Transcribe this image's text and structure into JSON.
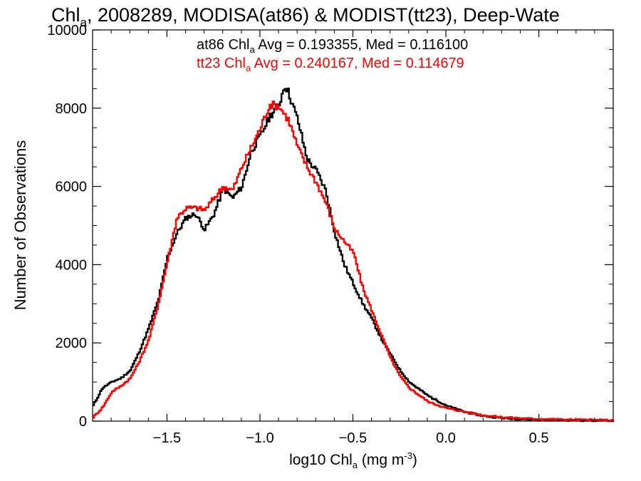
{
  "chart_data": {
    "type": "line",
    "title": "Chl_a, 2008289, MODISA(at86) & MODIST(tt23), Deep-Wate",
    "title_parts": {
      "pre": "Chl",
      "sub": "a",
      "post": ", 2008289, MODISA(at86) & MODIST(tt23), Deep-Wate"
    },
    "xlabel": "log10 Chl_a (mg m^-3)",
    "xlabel_parts": {
      "pre": "log10 Chl",
      "sub": "a",
      "mid": " (mg m",
      "sup": "-3",
      "post": ")"
    },
    "ylabel": "Number of Observations",
    "xlim": [
      -1.9,
      0.9
    ],
    "ylim": [
      0,
      10000
    ],
    "xticks": [
      -1.5,
      -1.0,
      -0.5,
      0.0,
      0.5
    ],
    "xtick_labels": [
      "−1.5",
      "−1.0",
      "−0.5",
      "0.0",
      "0.5"
    ],
    "yticks": [
      0,
      2000,
      4000,
      6000,
      8000,
      10000
    ],
    "ytick_labels": [
      "0",
      "2000",
      "4000",
      "6000",
      "8000",
      "10000"
    ],
    "grid": false,
    "annotations": [
      {
        "pre": "at86 Chl",
        "sub": "a",
        "post": " Avg = 0.193355, Med = 0.116100",
        "color": "#000000"
      },
      {
        "pre": "tt23 Chl",
        "sub": "a",
        "post": " Avg = 0.240167, Med = 0.114679",
        "color": "#ff0000"
      }
    ],
    "series": [
      {
        "color": "#000000",
        "points": [
          [
            -1.9,
            400
          ],
          [
            -1.85,
            850
          ],
          [
            -1.8,
            1000
          ],
          [
            -1.75,
            1100
          ],
          [
            -1.7,
            1300
          ],
          [
            -1.65,
            1800
          ],
          [
            -1.6,
            2400
          ],
          [
            -1.55,
            3100
          ],
          [
            -1.5,
            4200
          ],
          [
            -1.45,
            4800
          ],
          [
            -1.4,
            5200
          ],
          [
            -1.35,
            5300
          ],
          [
            -1.3,
            4900
          ],
          [
            -1.25,
            5300
          ],
          [
            -1.2,
            5950
          ],
          [
            -1.15,
            5700
          ],
          [
            -1.1,
            6000
          ],
          [
            -1.05,
            6900
          ],
          [
            -1.0,
            7300
          ],
          [
            -0.95,
            7800
          ],
          [
            -0.9,
            8100
          ],
          [
            -0.87,
            8600
          ],
          [
            -0.85,
            8400
          ],
          [
            -0.8,
            7700
          ],
          [
            -0.75,
            6700
          ],
          [
            -0.7,
            6400
          ],
          [
            -0.65,
            5900
          ],
          [
            -0.6,
            4800
          ],
          [
            -0.55,
            4000
          ],
          [
            -0.5,
            3500
          ],
          [
            -0.45,
            3000
          ],
          [
            -0.4,
            2600
          ],
          [
            -0.35,
            2100
          ],
          [
            -0.3,
            1700
          ],
          [
            -0.25,
            1300
          ],
          [
            -0.2,
            1000
          ],
          [
            -0.1,
            650
          ],
          [
            0.0,
            400
          ],
          [
            0.1,
            230
          ],
          [
            0.2,
            130
          ],
          [
            0.3,
            80
          ],
          [
            0.4,
            50
          ],
          [
            0.5,
            40
          ],
          [
            0.6,
            30
          ],
          [
            0.7,
            20
          ],
          [
            0.8,
            15
          ],
          [
            0.9,
            10
          ]
        ]
      },
      {
        "color": "#ff0000",
        "points": [
          [
            -1.9,
            100
          ],
          [
            -1.85,
            350
          ],
          [
            -1.8,
            750
          ],
          [
            -1.75,
            900
          ],
          [
            -1.7,
            1100
          ],
          [
            -1.65,
            1550
          ],
          [
            -1.6,
            2100
          ],
          [
            -1.55,
            3000
          ],
          [
            -1.5,
            4100
          ],
          [
            -1.45,
            5200
          ],
          [
            -1.4,
            5450
          ],
          [
            -1.35,
            5450
          ],
          [
            -1.3,
            5400
          ],
          [
            -1.25,
            5700
          ],
          [
            -1.2,
            6000
          ],
          [
            -1.15,
            5900
          ],
          [
            -1.1,
            6500
          ],
          [
            -1.05,
            7000
          ],
          [
            -1.0,
            7500
          ],
          [
            -0.95,
            8100
          ],
          [
            -0.9,
            8050
          ],
          [
            -0.85,
            7700
          ],
          [
            -0.8,
            7000
          ],
          [
            -0.75,
            6500
          ],
          [
            -0.7,
            6100
          ],
          [
            -0.65,
            5600
          ],
          [
            -0.6,
            4900
          ],
          [
            -0.55,
            4600
          ],
          [
            -0.5,
            4300
          ],
          [
            -0.45,
            3400
          ],
          [
            -0.4,
            2800
          ],
          [
            -0.35,
            2200
          ],
          [
            -0.3,
            1600
          ],
          [
            -0.25,
            1150
          ],
          [
            -0.2,
            850
          ],
          [
            -0.1,
            500
          ],
          [
            0.0,
            330
          ],
          [
            0.1,
            240
          ],
          [
            0.2,
            150
          ],
          [
            0.3,
            100
          ],
          [
            0.4,
            75
          ],
          [
            0.5,
            55
          ],
          [
            0.6,
            45
          ],
          [
            0.7,
            35
          ],
          [
            0.8,
            30
          ],
          [
            0.9,
            25
          ]
        ]
      }
    ]
  }
}
